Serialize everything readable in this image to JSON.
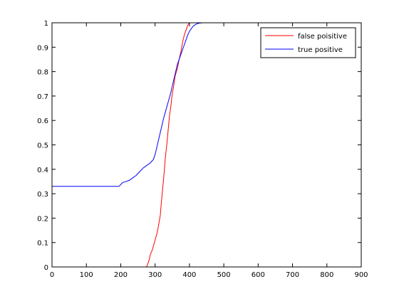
{
  "chart_data": {
    "type": "line",
    "title": "",
    "xlabel": "",
    "ylabel": "",
    "xlim": [
      0,
      900
    ],
    "ylim": [
      0,
      1
    ],
    "xticks": [
      0,
      100,
      200,
      300,
      400,
      500,
      600,
      700,
      800,
      900
    ],
    "yticks": [
      0,
      0.1,
      0.2,
      0.3,
      0.4,
      0.5,
      0.6,
      0.7,
      0.8,
      0.9,
      1
    ],
    "xtick_labels": [
      "0",
      "100",
      "200",
      "300",
      "400",
      "500",
      "600",
      "700",
      "800",
      "900"
    ],
    "ytick_labels": [
      "0",
      "0.1",
      "0.2",
      "0.3",
      "0.4",
      "0.5",
      "0.6",
      "0.7",
      "0.8",
      "0.9",
      "1"
    ],
    "grid": false,
    "legend_position": "top-right",
    "series": [
      {
        "name": "false poisitive",
        "color": "#ff0000",
        "x": [
          0,
          275,
          278,
          283,
          286,
          292,
          296,
          300,
          306,
          310,
          315,
          318,
          322,
          326,
          330,
          334,
          338,
          342,
          346,
          350,
          354,
          358,
          362,
          366,
          370,
          375,
          380,
          385,
          390,
          395,
          400,
          410,
          420,
          430,
          440,
          900
        ],
        "y": [
          0,
          0,
          0.01,
          0.03,
          0.05,
          0.07,
          0.09,
          0.11,
          0.14,
          0.17,
          0.21,
          0.26,
          0.32,
          0.38,
          0.45,
          0.5,
          0.56,
          0.62,
          0.66,
          0.71,
          0.74,
          0.78,
          0.8,
          0.82,
          0.85,
          0.88,
          0.92,
          0.95,
          0.97,
          0.99,
          1.0,
          1.0,
          1.0,
          1.0,
          1.0,
          1.0
        ]
      },
      {
        "name": "true positive",
        "color": "#0000ff",
        "x": [
          0,
          195,
          205,
          215,
          225,
          235,
          245,
          255,
          265,
          275,
          285,
          295,
          300,
          305,
          310,
          315,
          320,
          325,
          330,
          335,
          340,
          345,
          350,
          355,
          360,
          365,
          370,
          375,
          380,
          385,
          390,
          395,
          400,
          405,
          410,
          415,
          420,
          425,
          430,
          440,
          450,
          900
        ],
        "y": [
          0.33,
          0.33,
          0.345,
          0.35,
          0.355,
          0.365,
          0.375,
          0.39,
          0.405,
          0.415,
          0.425,
          0.44,
          0.46,
          0.49,
          0.52,
          0.55,
          0.58,
          0.61,
          0.635,
          0.66,
          0.685,
          0.71,
          0.74,
          0.77,
          0.8,
          0.83,
          0.85,
          0.87,
          0.89,
          0.91,
          0.93,
          0.95,
          0.965,
          0.975,
          0.985,
          0.99,
          0.995,
          0.997,
          0.999,
          1.0,
          1.0,
          1.0
        ]
      }
    ]
  }
}
